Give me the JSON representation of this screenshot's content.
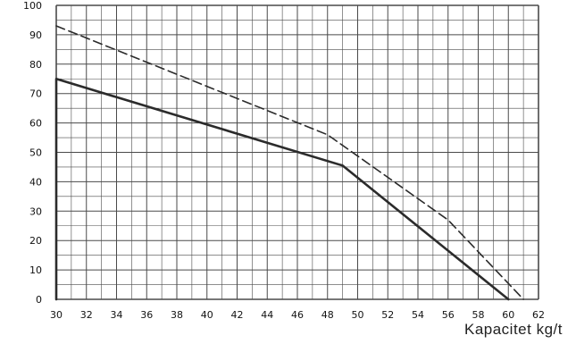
{
  "chart_data": {
    "type": "line",
    "title": "",
    "xlabel": "Kapacitet  kg/t",
    "ylabel": "",
    "xlim": [
      30,
      62
    ],
    "ylim": [
      0,
      100
    ],
    "x_ticks": [
      30,
      32,
      34,
      36,
      38,
      40,
      42,
      44,
      46,
      48,
      50,
      52,
      54,
      56,
      58,
      60,
      62
    ],
    "y_ticks": [
      0,
      10,
      20,
      30,
      40,
      50,
      60,
      70,
      80,
      90,
      100
    ],
    "x_minor_step": 1,
    "y_minor_step": 5,
    "grid": true,
    "legend": "none",
    "series": [
      {
        "style": "solid",
        "color": "#2b2b2b",
        "points": [
          [
            30,
            0
          ],
          [
            30,
            75
          ],
          [
            49,
            45.5
          ],
          [
            60,
            0
          ]
        ]
      },
      {
        "style": "dashed",
        "color": "#2b2b2b",
        "points": [
          [
            30,
            93
          ],
          [
            48,
            56
          ],
          [
            56,
            27
          ],
          [
            61,
            0
          ]
        ]
      }
    ]
  }
}
